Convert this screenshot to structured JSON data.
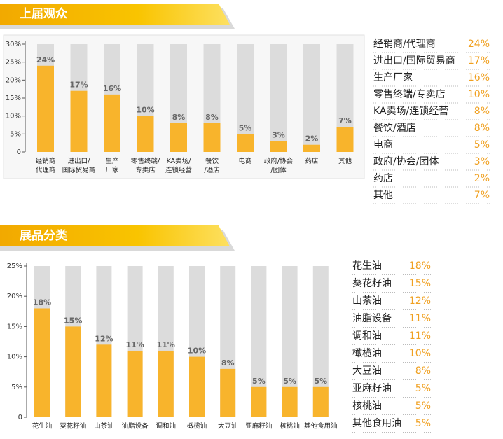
{
  "chart_data": [
    {
      "type": "bar",
      "title": "上届观众",
      "categories": [
        [
          "经销商",
          "代理商"
        ],
        [
          "进出口/",
          "国际贸易商"
        ],
        [
          "生产",
          "厂家"
        ],
        [
          "零售终端/",
          "专卖店"
        ],
        [
          "KA卖场/",
          "连锁经营"
        ],
        [
          "餐饮",
          "/酒店"
        ],
        [
          "电商"
        ],
        [
          "政府/协会",
          "/团体"
        ],
        [
          "药店"
        ],
        [
          "其他"
        ]
      ],
      "values": [
        24,
        17,
        16,
        10,
        8,
        8,
        5,
        3,
        2,
        7
      ],
      "value_labels": [
        "24%",
        "17%",
        "16%",
        "10%",
        "8%",
        "8%",
        "5%",
        "3%",
        "2%",
        "7%"
      ],
      "table_labels": [
        "经销商/代理商",
        "进出口/国际贸易商",
        "生产厂家",
        "零售终端/专卖店",
        "KA卖场/连锁经营",
        "餐饮/酒店",
        "电商",
        "政府/协会/团体",
        "药店",
        "其他"
      ],
      "color": "#f8b42c",
      "ylim": [
        0,
        30
      ],
      "yticks": [
        0,
        {
          "value": 5,
          "label": "5%"
        },
        {
          "value": 10,
          "label": "10%"
        },
        {
          "value": 15,
          "label": "15%"
        },
        {
          "value": 20,
          "label": "20%"
        },
        {
          "value": 25,
          "label": "25%"
        },
        {
          "value": 30,
          "label": "30%"
        }
      ]
    },
    {
      "type": "bar",
      "title": "展品分类",
      "categories": [
        "花生油",
        "葵花籽油",
        "山茶油",
        "油脂设备",
        "调和油",
        "橄榄油",
        "大豆油",
        "亚麻籽油",
        "核桃油",
        "其他食用油"
      ],
      "values": [
        18,
        15,
        12,
        11,
        11,
        10,
        8,
        5,
        5,
        5
      ],
      "value_labels": [
        "18%",
        "15%",
        "12%",
        "11%",
        "11%",
        "10%",
        "8%",
        "5%",
        "5%",
        "5%"
      ],
      "color": "#f8b42c",
      "ylim": [
        0,
        25
      ],
      "yticks": [
        0,
        {
          "value": 5,
          "label": "5%"
        },
        {
          "value": 10,
          "label": "10%"
        },
        {
          "value": 15,
          "label": "15%"
        },
        {
          "value": 20,
          "label": "20%"
        },
        {
          "value": 25,
          "label": "25%"
        }
      ]
    }
  ]
}
